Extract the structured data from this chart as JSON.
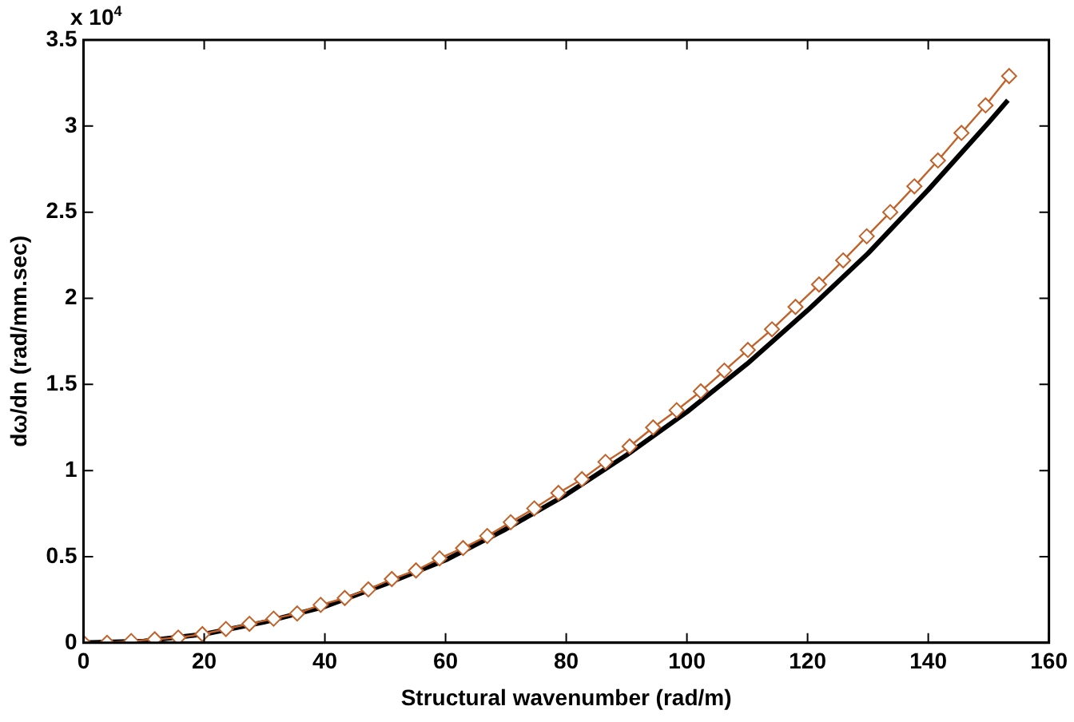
{
  "chart_data": {
    "type": "line",
    "xlabel": "Structural wavenumber (rad/m)",
    "ylabel": "dω/dn (rad/mm.sec)",
    "annotations": [
      "x 10$^{4}$"
    ],
    "xlim": [
      0,
      160
    ],
    "xticks": [
      0,
      20,
      40,
      60,
      80,
      100,
      120,
      140,
      160
    ],
    "ylim": [
      0,
      3.5
    ],
    "yticks": [
      0,
      0.5,
      1,
      1.5,
      2,
      2.5,
      3,
      3.5
    ],
    "grid": false,
    "legend": false,
    "series": [
      {
        "color": "#000000",
        "marker": "none",
        "x": [
          0,
          10,
          20,
          30,
          40,
          50,
          60,
          70,
          80,
          90,
          100,
          110,
          120,
          130,
          140,
          150,
          153.2
        ],
        "values": [
          0,
          0.01,
          0.05,
          0.12,
          0.21,
          0.34,
          0.48,
          0.66,
          0.86,
          1.09,
          1.34,
          1.62,
          1.93,
          2.26,
          2.63,
          3.02,
          3.15
        ]
      },
      {
        "color": "#c0622a",
        "marker": "diamond",
        "x": [
          0,
          3.9,
          7.9,
          11.8,
          15.7,
          19.7,
          23.6,
          27.5,
          31.5,
          35.4,
          39.3,
          43.3,
          47.2,
          51.1,
          55.1,
          59.0,
          62.9,
          66.9,
          70.8,
          74.7,
          78.7,
          82.6,
          86.5,
          90.5,
          94.4,
          98.3,
          102.3,
          106.2,
          110.1,
          114.1,
          118.0,
          121.9,
          125.9,
          129.8,
          133.7,
          137.7,
          141.6,
          145.5,
          149.5,
          153.4
        ],
        "values": [
          0,
          0,
          0.01,
          0.02,
          0.03,
          0.05,
          0.08,
          0.11,
          0.14,
          0.17,
          0.22,
          0.26,
          0.31,
          0.37,
          0.42,
          0.49,
          0.55,
          0.62,
          0.7,
          0.78,
          0.87,
          0.95,
          1.05,
          1.14,
          1.25,
          1.35,
          1.46,
          1.58,
          1.7,
          1.82,
          1.95,
          2.08,
          2.22,
          2.36,
          2.5,
          2.65,
          2.8,
          2.96,
          3.12,
          3.29
        ]
      }
    ]
  }
}
